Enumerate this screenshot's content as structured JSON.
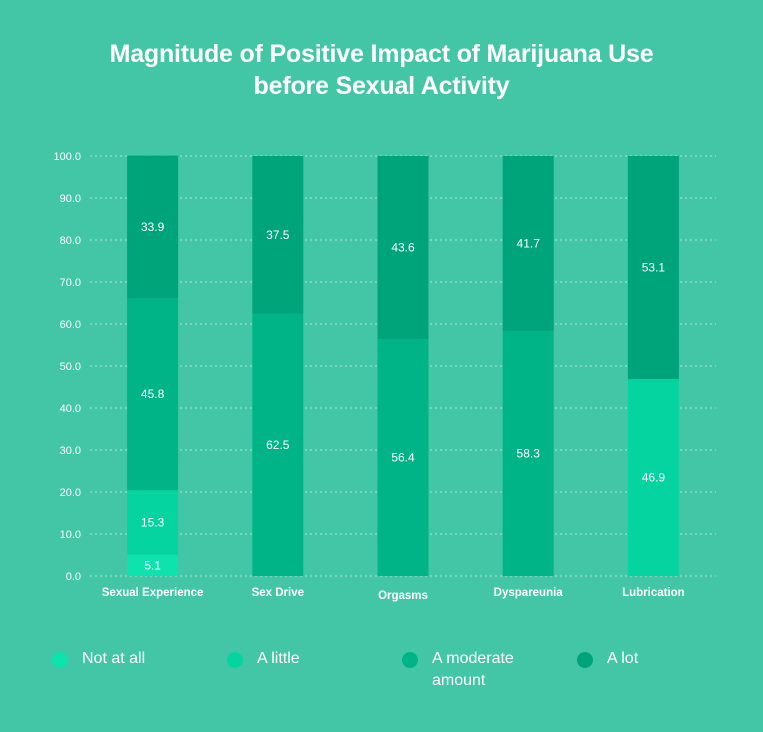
{
  "chart_data": {
    "type": "bar",
    "stacked": true,
    "title": "Magnitude of Positive Impact of Marijuana Use before Sexual Activity",
    "title_lines": [
      "Magnitude of Positive Impact of Marijuana Use",
      "before Sexual Activity"
    ],
    "categories": [
      "Sexual Experience",
      "Sex Drive",
      "Orgasms",
      "Dyspareunia",
      "Lubrication"
    ],
    "series": [
      {
        "name": "Not at all",
        "color": "#0ee3ad",
        "values": [
          5.1,
          0,
          0,
          0,
          0
        ]
      },
      {
        "name": "A little",
        "color": "#06d4a0",
        "values": [
          15.3,
          0,
          0,
          0,
          46.9
        ]
      },
      {
        "name": "A moderate amount",
        "color": "#00b487",
        "values": [
          45.8,
          62.5,
          56.4,
          58.3,
          0
        ]
      },
      {
        "name": "A lot",
        "color": "#00a47a",
        "values": [
          33.9,
          37.5,
          43.6,
          41.7,
          53.1
        ]
      }
    ],
    "ylim": [
      0,
      100
    ],
    "yticks": [
      "0.0",
      "10.0",
      "20.0",
      "30.0",
      "40.0",
      "50.0",
      "60.0",
      "70.0",
      "80.0",
      "90.0",
      "100.0"
    ],
    "grid": true,
    "legend_position": "bottom"
  }
}
